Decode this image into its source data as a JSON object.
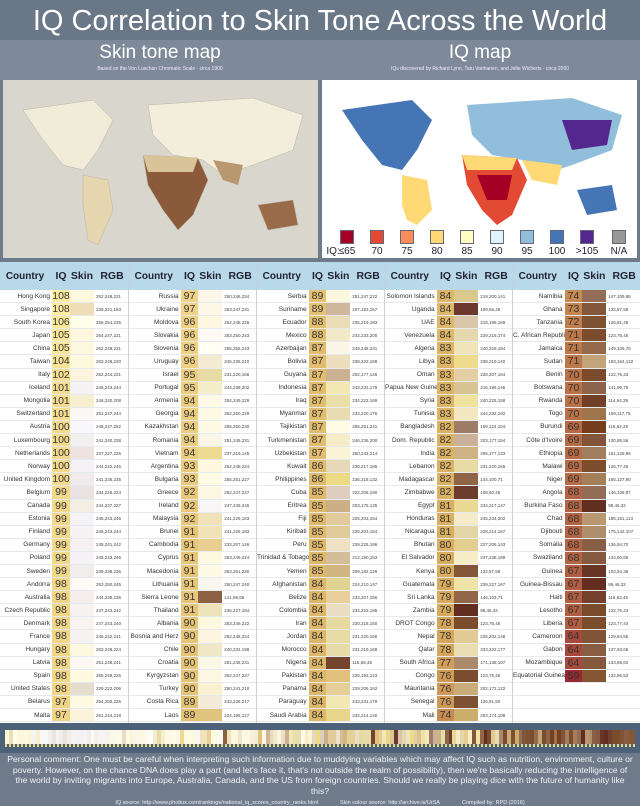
{
  "title": "IQ Correlation to Skin Tone Across the World",
  "skin_map": {
    "title": "Skin tone map",
    "subtitle": "Based on the Von Luschan Chromatic Scale - circa 1900"
  },
  "iq_map": {
    "title": "IQ map",
    "subtitle": "IQs discovered by Richard Lynn, Tatu Vanhanen, and Jelte Wicherts - circa 2000",
    "legend_label": "IQ:",
    "legend": [
      {
        "label": "≤65",
        "color": "#a50026"
      },
      {
        "label": "70",
        "color": "#e34a33"
      },
      {
        "label": "75",
        "color": "#fc8d59"
      },
      {
        "label": "80",
        "color": "#fed976"
      },
      {
        "label": "85",
        "color": "#ffffbf"
      },
      {
        "label": "90",
        "color": "#e0f3f8"
      },
      {
        "label": "95",
        "color": "#91bfdb"
      },
      {
        "label": "100",
        "color": "#4575b4"
      },
      {
        "label": ">105",
        "color": "#54278f"
      },
      {
        "label": "N/A",
        "color": "#999999"
      }
    ]
  },
  "table": {
    "headers": [
      "Country",
      "IQ",
      "Skin",
      "RGB"
    ],
    "groups": [
      [
        [
          "Hong Kong",
          "108",
          "252,248,221"
        ],
        [
          "Singapore",
          "108",
          "239,221,183"
        ],
        [
          "South Korea",
          "106",
          "255,254,235"
        ],
        [
          "Japan",
          "105",
          "254,247,221"
        ],
        [
          "China",
          "105",
          "252,248,221"
        ],
        [
          "Taiwan",
          "104",
          "253,249,220"
        ],
        [
          "Italy",
          "102",
          "252,244,221"
        ],
        [
          "Iceland",
          "101",
          "245,243,244"
        ],
        [
          "Mongolia",
          "101",
          "246,240,208"
        ],
        [
          "Switzerland",
          "101",
          "251,247,244"
        ],
        [
          "Austria",
          "100",
          "248,247,252"
        ],
        [
          "Luxembourg",
          "100",
          "241,240,238"
        ],
        [
          "Netherlands",
          "100",
          "237,227,225"
        ],
        [
          "Norway",
          "100",
          "244,242,245"
        ],
        [
          "United Kingdom",
          "100",
          "241,235,235"
        ],
        [
          "Belgium",
          "99",
          "234,226,224"
        ],
        [
          "Canada",
          "99",
          "244,237,227"
        ],
        [
          "Estonia",
          "99",
          "245,243,246"
        ],
        [
          "Finland",
          "99",
          "245,243,244"
        ],
        [
          "Germany",
          "99",
          "245,241,242"
        ],
        [
          "Poland",
          "99",
          "245,243,246"
        ],
        [
          "Sweden",
          "99",
          "239,238,236"
        ],
        [
          "Andorra",
          "98",
          "253,250,245"
        ],
        [
          "Australia",
          "98",
          "244,239,236"
        ],
        [
          "Czech Republic",
          "98",
          "247,243,242"
        ],
        [
          "Denmark",
          "98",
          "247,243,240"
        ],
        [
          "France",
          "98",
          "246,242,241"
        ],
        [
          "Hungary",
          "98",
          "253,249,224"
        ],
        [
          "Latvia",
          "98",
          "251,248,241"
        ],
        [
          "Spain",
          "98",
          "255,249,225"
        ],
        [
          "United States",
          "98",
          "229,222,206"
        ],
        [
          "Belarus",
          "97",
          "254,250,225"
        ],
        [
          "Malta",
          "97",
          "251,244,218"
        ]
      ],
      [
        [
          "Russia",
          "97",
          "250,246,234"
        ],
        [
          "Ukraine",
          "97",
          "253,247,231"
        ],
        [
          "Moldova",
          "96",
          "254,248,226"
        ],
        [
          "Slovakia",
          "96",
          "253,250,243"
        ],
        [
          "Slovenia",
          "96",
          "255,255,243"
        ],
        [
          "Uruguay",
          "96",
          "245,235,210"
        ],
        [
          "Israel",
          "95",
          "231,220,166"
        ],
        [
          "Portugal",
          "95",
          "244,238,202"
        ],
        [
          "Armenia",
          "94",
          "254,249,229"
        ],
        [
          "Georgia",
          "94",
          "252,250,229"
        ],
        [
          "Kazakhstan",
          "94",
          "255,250,230"
        ],
        [
          "Romania",
          "94",
          "251,245,231"
        ],
        [
          "Vietnam",
          "94",
          "237,219,145"
        ],
        [
          "Argentina",
          "93",
          "254,248,224"
        ],
        [
          "Bulgaria",
          "93",
          "255,251,227"
        ],
        [
          "Greece",
          "92",
          "252,247,227"
        ],
        [
          "Ireland",
          "92",
          "247,245,246"
        ],
        [
          "Malaysia",
          "92",
          "241,226,183"
        ],
        [
          "Brunei",
          "91",
          "241,226,183"
        ],
        [
          "Cambodia",
          "91",
          "233,207,146"
        ],
        [
          "Cyprus",
          "91",
          "253,249,224"
        ],
        [
          "Macedonia",
          "91",
          "253,251,230"
        ],
        [
          "Lithuania",
          "91",
          "250,247,240"
        ],
        [
          "Sierra Leone",
          "91",
          "141,98,66"
        ],
        [
          "Thailand",
          "91",
          "236,227,184"
        ],
        [
          "Albania",
          "90",
          "253,249,222"
        ],
        [
          "Bosnia and Herz",
          "90",
          "252,246,224"
        ],
        [
          "Chile",
          "90",
          "240,231,198"
        ],
        [
          "Croatia",
          "90",
          "251,248,231"
        ],
        [
          "Kyrgyzstan",
          "90",
          "252,247,227"
        ],
        [
          "Turkey",
          "90",
          "250,241,210"
        ],
        [
          "Costa Rica",
          "89",
          "243,236,217"
        ],
        [
          "Laos",
          "89",
          "224,195,127"
        ]
      ],
      [
        [
          "Serbia",
          "89",
          "251,247,222"
        ],
        [
          "Suriname",
          "89",
          "207,183,157"
        ],
        [
          "Ecuador",
          "88",
          "235,219,183"
        ],
        [
          "Mexico",
          "88",
          "242,233,200"
        ],
        [
          "Azerbaijan",
          "87",
          "249,246,231"
        ],
        [
          "Bolivia",
          "87",
          "238,222,189"
        ],
        [
          "Guyana",
          "87",
          "202,177,146"
        ],
        [
          "Indonesia",
          "87",
          "243,231,179"
        ],
        [
          "Iraq",
          "87",
          "234,223,169"
        ],
        [
          "Myanmar",
          "87",
          "233,220,176"
        ],
        [
          "Tajikistan",
          "87",
          "255,251,231"
        ],
        [
          "Turkmenistan",
          "87",
          "246,236,200"
        ],
        [
          "Uzbekistan",
          "87",
          "250,243,214"
        ],
        [
          "Kuwait",
          "86",
          "230,217,185"
        ],
        [
          "Philippines",
          "86",
          "236,218,132"
        ],
        [
          "Cuba",
          "85",
          "222,206,190"
        ],
        [
          "Eritrea",
          "85",
          "203,175,135"
        ],
        [
          "Fiji",
          "85",
          "225,203,154"
        ],
        [
          "Kiribati",
          "85",
          "225,203,154"
        ],
        [
          "Peru",
          "85",
          "239,225,196"
        ],
        [
          "Trinidad & Tobago",
          "85",
          "212,190,153"
        ],
        [
          "Yemen",
          "85",
          "209,182,129"
        ],
        [
          "Afghanistan",
          "84",
          "224,210,147"
        ],
        [
          "Belize",
          "84",
          "233,207,156"
        ],
        [
          "Colombia",
          "84",
          "234,223,195"
        ],
        [
          "Iran",
          "84",
          "230,218,160"
        ],
        [
          "Jordan",
          "84",
          "231,220,166"
        ],
        [
          "Morocco",
          "84",
          "231,219,169"
        ],
        [
          "Nigeria",
          "84",
          "116,68,46"
        ],
        [
          "Pakistan",
          "84",
          "225,193,123"
        ],
        [
          "Panama",
          "84",
          "229,206,152"
        ],
        [
          "Paraguay",
          "84",
          "243,231,179"
        ],
        [
          "Saudi Arabia",
          "84",
          "232,214,140"
        ]
      ],
      [
        [
          "Solomon Islands",
          "84",
          "219,200,141"
        ],
        [
          "Uganda",
          "84",
          "109,56,48"
        ],
        [
          "UAE",
          "84",
          "218,199,169"
        ],
        [
          "Venezuela",
          "84",
          "229,216,174"
        ],
        [
          "Algeria",
          "83",
          "240,229,184"
        ],
        [
          "Libya",
          "83",
          "238,219,140"
        ],
        [
          "Oman",
          "83",
          "228,207,164"
        ],
        [
          "Papua New Guinea",
          "83",
          "216,196,146"
        ],
        [
          "Syria",
          "83",
          "240,225,158"
        ],
        [
          "Tunisia",
          "83",
          "244,232,192"
        ],
        [
          "Bangladesh",
          "82",
          "159,124,104"
        ],
        [
          "Dom. Republic",
          "82",
          "203,177,154"
        ],
        [
          "India",
          "82",
          "206,177,133"
        ],
        [
          "Lebanon",
          "82",
          "231,220,166"
        ],
        [
          "Madagascar",
          "82",
          "144,100,71"
        ],
        [
          "Zimbabwe",
          "82",
          "108,60,46"
        ],
        [
          "Egypt",
          "81",
          "234,217,147"
        ],
        [
          "Honduras",
          "81",
          "245,234,202"
        ],
        [
          "Nicaragua",
          "81",
          "228,214,167"
        ],
        [
          "Bhutan",
          "80",
          "227,206,143"
        ],
        [
          "El Salvador",
          "80",
          "247,238,199"
        ],
        [
          "Kenya",
          "80",
          "132,87,58"
        ],
        [
          "Guatemala",
          "79",
          "239,227,167"
        ],
        [
          "Sri Lanka",
          "79",
          "146,103,71"
        ],
        [
          "Zambia",
          "79",
          "98,46,32"
        ],
        [
          "DROT Congo",
          "78",
          "123,76,46"
        ],
        [
          "Nepal",
          "78",
          "225,202,148"
        ],
        [
          "Qatar",
          "78",
          "233,222,177"
        ],
        [
          "South Africa",
          "77",
          "171,138,107"
        ],
        [
          "Congo",
          "76",
          "123,76,46"
        ],
        [
          "Mauritania",
          "76",
          "202,172,122"
        ],
        [
          "Senegal",
          "76",
          "126,81,50"
        ],
        [
          "Mali",
          "74",
          "203,174,108"
        ]
      ],
      [
        [
          "Namibia",
          "74",
          "147,109,86"
        ],
        [
          "Ghana",
          "73",
          "132,87,58"
        ],
        [
          "Tanzania",
          "72",
          "126,81,48"
        ],
        [
          "C. African Republic",
          "71",
          "123,76,46"
        ],
        [
          "Jamaica",
          "71",
          "149,105,76"
        ],
        [
          "Sudan",
          "71",
          "193,164,122"
        ],
        [
          "Benin",
          "70",
          "122,76,43"
        ],
        [
          "Botswana",
          "70",
          "141,99,75"
        ],
        [
          "Rwanda",
          "70",
          "114,64,39"
        ],
        [
          "Togo",
          "70",
          "159,117,75"
        ],
        [
          "Burundi",
          "69",
          "118,62,29"
        ],
        [
          "Côte d'Ivoire",
          "69",
          "130,85,56"
        ],
        [
          "Ethiopia",
          "69",
          "161,126,96"
        ],
        [
          "Malawi",
          "69",
          "126,77,45"
        ],
        [
          "Niger",
          "69",
          "165,127,90"
        ],
        [
          "Angola",
          "68",
          "146,108,87"
        ],
        [
          "Burkina Faso",
          "68",
          "98,46,32"
        ],
        [
          "Chad",
          "68",
          "185,151,113"
        ],
        [
          "Djibouti",
          "68",
          "175,142,107"
        ],
        [
          "Somalia",
          "68",
          "136,94,70"
        ],
        [
          "Swaziland",
          "68",
          "134,90,65"
        ],
        [
          "Guinea",
          "67",
          "103,54,39"
        ],
        [
          "Guinea-Bissau",
          "67",
          "99,46,32"
        ],
        [
          "Haiti",
          "67",
          "116,63,45"
        ],
        [
          "Lesotho",
          "67",
          "122,76,43"
        ],
        [
          "Liberia",
          "67",
          "123,77,44"
        ],
        [
          "Cameroon",
          "64",
          "129,84,55"
        ],
        [
          "Gabon",
          "64",
          "137,93,66"
        ],
        [
          "Mozambique",
          "64",
          "133,89,62"
        ],
        [
          "Equatorial Guinea",
          "59",
          "132,86,52"
        ]
      ]
    ]
  },
  "footer": {
    "comment": "Personal comment: One must be careful when interpreting such information due to muddying variables which may affect IQ such as nutrition, environment, culture or poverty. However, on the chance DNA does play a part (and let's face it, that's not outside the realm of possibility), then we're basically reducing the intelligence of the world by inviting migrants into Europe, Australia, Canada,  and the US from foreign countries. Should we really be playing dice with the future of humanity like this?",
    "iq_source": "IQ source: http://www.photius.com/rankings/national_iq_scores_country_ranks.html",
    "skin_source": "Skin colour source: http://archive.is/UrSA",
    "compiled": "Compiled by: RPD (2016)"
  }
}
